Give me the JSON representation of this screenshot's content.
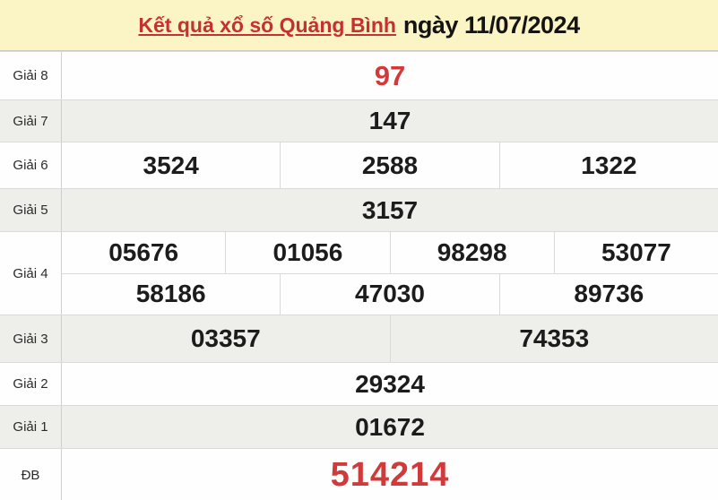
{
  "header": {
    "title_link": "Kết quả xổ số Quảng Bình",
    "date_text": "ngày 11/07/2024"
  },
  "prizes": [
    {
      "label": "Giải 8",
      "values": [
        "97"
      ]
    },
    {
      "label": "Giải 7",
      "values": [
        "147"
      ]
    },
    {
      "label": "Giải 6",
      "values": [
        "3524",
        "2588",
        "1322"
      ]
    },
    {
      "label": "Giải 5",
      "values": [
        "3157"
      ]
    },
    {
      "label": "Giải 4",
      "values": [
        "05676",
        "01056",
        "98298",
        "53077",
        "58186",
        "47030",
        "89736"
      ]
    },
    {
      "label": "Giải 3",
      "values": [
        "03357",
        "74353"
      ]
    },
    {
      "label": "Giải 2",
      "values": [
        "29324"
      ]
    },
    {
      "label": "Giải 1",
      "values": [
        "01672"
      ]
    },
    {
      "label": "ĐB",
      "values": [
        "514214"
      ]
    }
  ],
  "colors": {
    "header_background": "#FBF4C4",
    "link_red": "#C53030",
    "number_red": "#D03A3A",
    "row_gray": "#EEEEEB",
    "number_black": "#1c1c1c"
  }
}
